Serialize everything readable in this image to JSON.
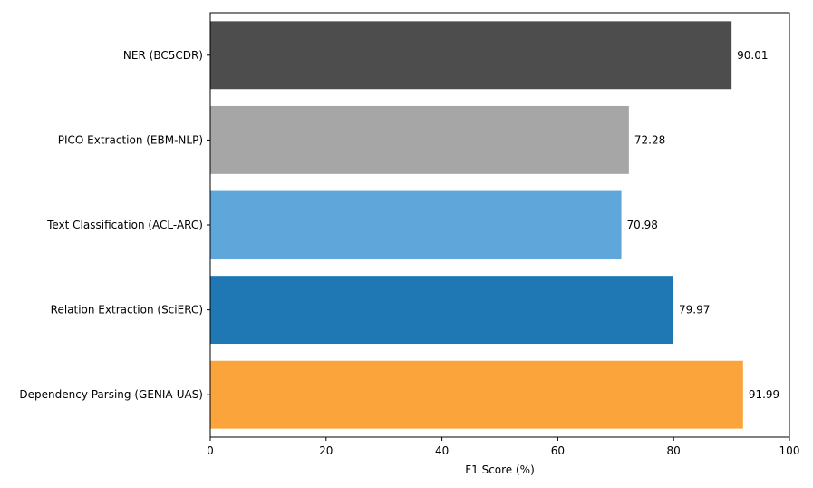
{
  "chart_data": {
    "type": "bar",
    "orientation": "horizontal",
    "categories": [
      "NER (BC5CDR)",
      "PICO Extraction (EBM-NLP)",
      "Text Classification (ACL-ARC)",
      "Relation Extraction (SciERC)",
      "Dependency Parsing (GENIA-UAS)"
    ],
    "values": [
      90.01,
      72.28,
      70.98,
      79.97,
      91.99
    ],
    "value_labels": [
      "90.01",
      "72.28",
      "70.98",
      "79.97",
      "91.99"
    ],
    "colors": [
      "#4d4d4d",
      "#a6a6a6",
      "#5fa6db",
      "#1f78b4",
      "#fba43b"
    ],
    "xlabel": "F1 Score (%)",
    "ylabel": "",
    "title": "",
    "xlim": [
      0,
      100
    ],
    "xticks": [
      0,
      20,
      40,
      60,
      80,
      100
    ],
    "xtick_labels": [
      "0",
      "20",
      "40",
      "60",
      "80",
      "100"
    ],
    "grid": false,
    "legend": "none"
  }
}
